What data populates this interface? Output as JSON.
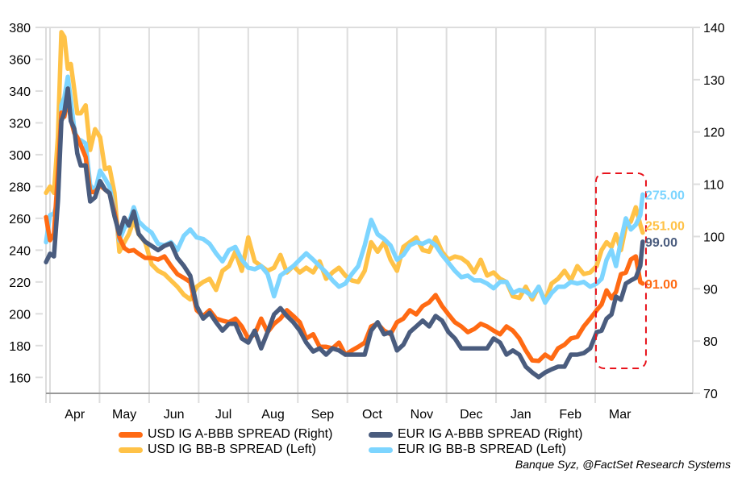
{
  "chart_data": {
    "type": "line",
    "title": "",
    "x_unit": "months since start of April (0 = Apr 1, 11 = Mar 1)",
    "xlim": [
      -0.08,
      12.97
    ],
    "x_tick_labels": [
      "Apr",
      "May",
      "Jun",
      "Jul",
      "Aug",
      "Sep",
      "Oct",
      "Nov",
      "Dec",
      "Jan",
      "Feb",
      "Mar"
    ],
    "y_left": {
      "ticks": [
        160,
        180,
        200,
        220,
        240,
        260,
        280,
        300,
        320,
        340,
        360,
        380
      ],
      "range": [
        150,
        380
      ]
    },
    "y_right": {
      "ticks": [
        70,
        80,
        90,
        100,
        110,
        120,
        130,
        140
      ],
      "range": [
        70,
        140
      ]
    },
    "grid": "vertical month lines",
    "legend_position": "bottom",
    "x": [
      -0.08,
      0,
      0.08,
      0.16,
      0.23,
      0.29,
      0.36,
      0.42,
      0.49,
      0.55,
      0.62,
      0.72,
      0.81,
      0.91,
      1.01,
      1.11,
      1.2,
      1.3,
      1.4,
      1.5,
      1.59,
      1.69,
      1.79,
      1.92,
      2.05,
      2.18,
      2.31,
      2.44,
      2.57,
      2.7,
      2.83,
      2.96,
      3.09,
      3.22,
      3.35,
      3.48,
      3.61,
      3.74,
      3.87,
      4.0,
      4.13,
      4.26,
      4.39,
      4.52,
      4.65,
      4.78,
      4.91,
      5.04,
      5.17,
      5.31,
      5.44,
      5.57,
      5.7,
      5.83,
      5.96,
      6.09,
      6.22,
      6.35,
      6.48,
      6.61,
      6.74,
      6.87,
      7.0,
      7.13,
      7.26,
      7.39,
      7.52,
      7.65,
      7.78,
      7.91,
      8.04,
      8.17,
      8.3,
      8.43,
      8.56,
      8.69,
      8.82,
      8.95,
      9.08,
      9.21,
      9.34,
      9.47,
      9.6,
      9.73,
      9.86,
      9.99,
      10.12,
      10.25,
      10.38,
      10.51,
      10.64,
      10.77,
      10.9,
      11.03,
      11.13,
      11.23,
      11.33,
      11.42,
      11.52,
      11.62,
      11.72,
      11.82,
      11.91,
      11.96
    ],
    "series": [
      {
        "name": "USD IG BB-B SPREAD (Left)",
        "axis": "left",
        "color": "#FFC247",
        "values": [
          276,
          280,
          276,
          311,
          377,
          374,
          354,
          357,
          341,
          326,
          326,
          331,
          303,
          316,
          311,
          291,
          292,
          276,
          239,
          245,
          250,
          259,
          250,
          245,
          231,
          227,
          225,
          221,
          217,
          212,
          209,
          217,
          220,
          222,
          215,
          227,
          230,
          239,
          227,
          248,
          233,
          230,
          227,
          229,
          237,
          226,
          230,
          226,
          229,
          226,
          233,
          222,
          226,
          229,
          224,
          221,
          220,
          227,
          245,
          239,
          245,
          234,
          227,
          242,
          245,
          248,
          240,
          239,
          248,
          239,
          234,
          236,
          235,
          232,
          226,
          234,
          224,
          226,
          222,
          220,
          211,
          210,
          217,
          209,
          217,
          208,
          219,
          222,
          227,
          221,
          230,
          225,
          226,
          230,
          240,
          245,
          242,
          250,
          240,
          255,
          258,
          267,
          256,
          251
        ],
        "last_label": "251.00"
      },
      {
        "name": "EUR IG BB-B SPREAD (Left)",
        "axis": "left",
        "color": "#7DD5FF",
        "values": [
          245,
          262,
          263,
          271,
          331,
          336,
          349,
          334,
          316,
          310,
          309,
          307,
          281,
          277,
          290,
          285,
          280,
          265,
          246,
          254,
          257,
          267,
          258,
          254,
          251,
          244,
          243,
          245,
          240,
          249,
          253,
          248,
          247,
          244,
          238,
          233,
          240,
          242,
          234,
          229,
          228,
          230,
          225,
          211,
          224,
          227,
          230,
          234,
          238,
          234,
          230,
          226,
          221,
          217,
          219,
          225,
          230,
          243,
          259,
          250,
          247,
          243,
          234,
          237,
          243,
          245,
          244,
          246,
          243,
          237,
          232,
          227,
          223,
          224,
          221,
          221,
          219,
          216,
          220,
          220,
          213,
          215,
          214,
          211,
          217,
          207,
          213,
          217,
          217,
          220,
          219,
          220,
          217,
          219,
          222,
          234,
          240,
          230,
          246,
          260,
          253,
          256,
          262,
          275
        ],
        "last_label": "275.00"
      },
      {
        "name": "USD IG A-BBB SPREAD (Right)",
        "axis": "right",
        "color": "#FF6A13",
        "values": [
          103.7,
          99.3,
          100.5,
          112.1,
          123.7,
          122.9,
          126.7,
          122.4,
          119.8,
          119.0,
          117.5,
          115.2,
          108.5,
          108.5,
          109.8,
          109.0,
          108.3,
          104.8,
          99.8,
          97.8,
          97.2,
          97.4,
          96.7,
          95.9,
          95.9,
          95.6,
          96.2,
          94.4,
          92.8,
          92.1,
          91.3,
          85.9,
          84.8,
          85.9,
          84.3,
          83.9,
          83.6,
          84.3,
          82.8,
          80.5,
          81.3,
          84.3,
          81.7,
          83.3,
          84.3,
          85.9,
          84.8,
          83.6,
          80.5,
          81.3,
          78.9,
          78.9,
          78.6,
          79.7,
          77.4,
          78.2,
          78.9,
          79.7,
          82.8,
          83.3,
          82.0,
          81.3,
          83.6,
          84.3,
          85.9,
          85.1,
          86.7,
          87.4,
          88.8,
          86.7,
          85.1,
          83.6,
          82.8,
          81.7,
          82.3,
          83.3,
          82.8,
          82.0,
          81.3,
          82.8,
          82.0,
          80.5,
          78.2,
          76.3,
          76.2,
          77.4,
          76.6,
          78.6,
          79.3,
          80.5,
          80.8,
          82.8,
          84.3,
          85.9,
          87.0,
          89.7,
          88.2,
          89.4,
          92.8,
          93.1,
          95.6,
          96.2,
          91.3,
          91.0
        ],
        "last_label": "91.00"
      },
      {
        "name": "EUR IG A-BBB SPREAD (Right)",
        "axis": "right",
        "color": "#4A5C7E",
        "values": [
          95.1,
          96.7,
          96.2,
          106.7,
          122.1,
          123.7,
          128.3,
          122.1,
          120.6,
          115.9,
          113.6,
          113.6,
          106.7,
          107.5,
          110.6,
          109.0,
          108.3,
          103.9,
          100.5,
          103.6,
          102.1,
          104.8,
          100.5,
          99.0,
          98.2,
          97.4,
          98.2,
          98.7,
          95.9,
          94.4,
          92.5,
          86.7,
          84.3,
          85.4,
          83.6,
          82.0,
          83.3,
          83.3,
          80.5,
          79.7,
          82.0,
          78.6,
          81.7,
          85.1,
          86.3,
          84.8,
          83.6,
          82.0,
          79.7,
          78.0,
          78.6,
          77.4,
          78.6,
          78.2,
          77.4,
          77.4,
          77.4,
          77.4,
          82.0,
          83.6,
          81.3,
          81.7,
          78.2,
          79.3,
          81.7,
          82.8,
          83.9,
          82.8,
          84.8,
          83.9,
          81.7,
          80.5,
          78.6,
          78.6,
          78.6,
          78.6,
          78.6,
          80.5,
          79.7,
          77.4,
          78.2,
          77.4,
          75.1,
          74.0,
          73.1,
          74.0,
          74.6,
          75.1,
          75.1,
          77.4,
          77.4,
          77.7,
          78.6,
          81.7,
          82.0,
          84.3,
          85.1,
          88.5,
          87.9,
          91.0,
          91.6,
          92.1,
          94.4,
          99.0
        ],
        "last_label": "99.00"
      }
    ],
    "annotation": "red dashed rounded box highlighting March",
    "legend_rows": [
      [
        "USD IG A-BBB SPREAD (Right)",
        "EUR IG A-BBB SPREAD (Right)"
      ],
      [
        "USD IG BB-B SPREAD (Left)",
        "EUR IG BB-B SPREAD (Left)"
      ]
    ],
    "source": "Banque Syz, @FactSet Research Systems"
  },
  "legend": {
    "items": [
      {
        "label": "USD IG A-BBB SPREAD (Right)",
        "color": "#FF6A13"
      },
      {
        "label": "EUR IG A-BBB SPREAD (Right)",
        "color": "#4A5C7E"
      },
      {
        "label": "USD IG BB-B SPREAD (Left)",
        "color": "#FFC247"
      },
      {
        "label": "EUR IG BB-B SPREAD (Left)",
        "color": "#7DD5FF"
      }
    ]
  },
  "source": "Banque Syz, @FactSet Research Systems",
  "colors": {
    "highlight_box": "#E8121B",
    "grid": "#DDDDDD",
    "axis": "#999999"
  }
}
